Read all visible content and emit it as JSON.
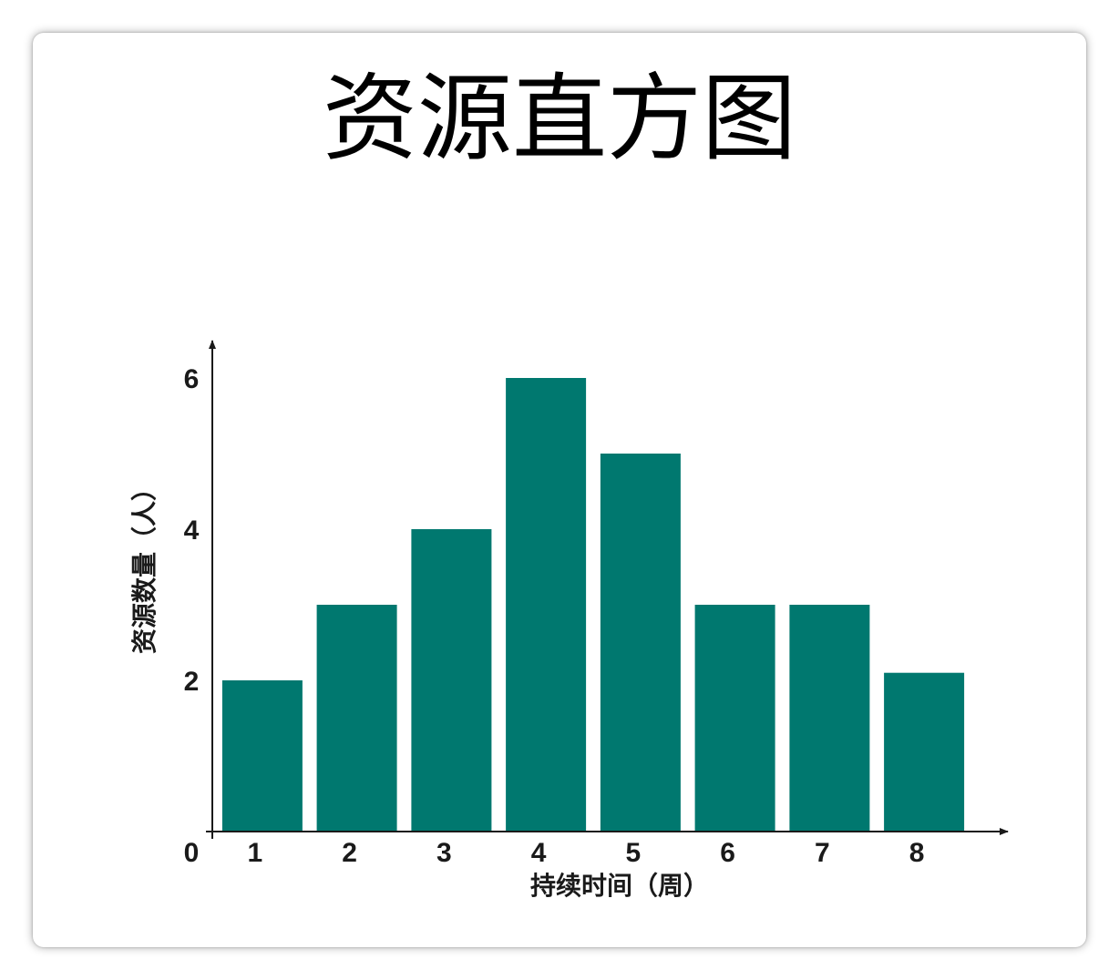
{
  "chart_data": {
    "type": "bar",
    "title": "资源直方图",
    "xlabel": "持续时间（周）",
    "ylabel": "资源数量（人）",
    "categories": [
      "1",
      "2",
      "3",
      "4",
      "5",
      "6",
      "7",
      "8"
    ],
    "values": [
      2,
      3,
      4,
      6,
      5,
      3,
      3,
      2.1
    ],
    "yticks": [
      "0",
      "2",
      "4",
      "6"
    ],
    "ylim": [
      0,
      6.8
    ],
    "grid": false,
    "legend": "none",
    "bar_color": "#00786f",
    "axis_color": "#1a1a1a"
  }
}
